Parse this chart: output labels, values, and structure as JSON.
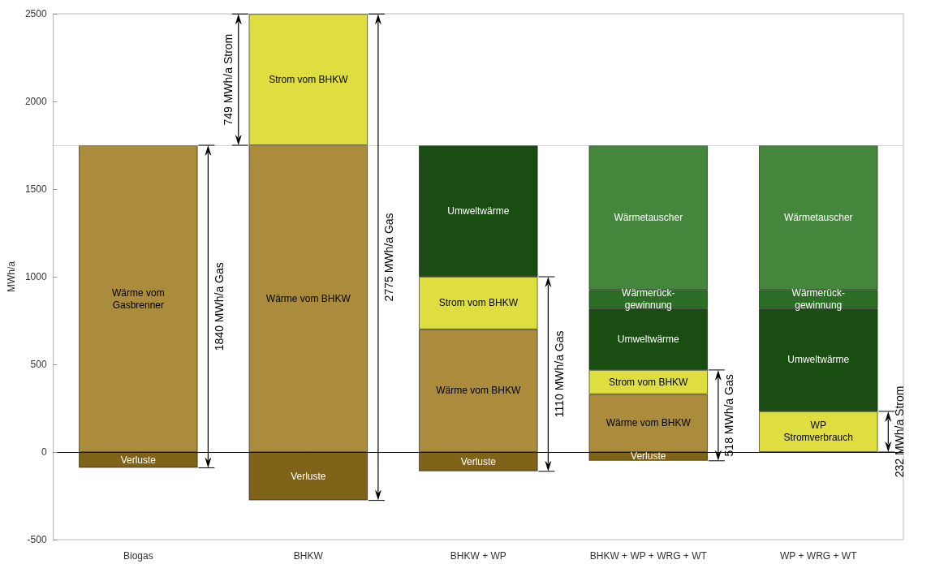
{
  "chart_data": {
    "type": "bar",
    "stacked": true,
    "ylabel": "MWh/a",
    "categories": [
      "Biogas",
      "BHKW",
      "BHKW + WP",
      "BHKW + WP + WRG + WT",
      "WP + WRG + WT"
    ],
    "series": [
      {
        "name": "Verluste",
        "color": "#7f6318",
        "values": [
          -90,
          -276,
          -110,
          -50,
          null
        ]
      },
      {
        "name": "Wärme vom\nGasbrenner",
        "color": "#aa8c3c",
        "values": [
          1750,
          null,
          null,
          null,
          null
        ]
      },
      {
        "name": "Wärme vom BHKW",
        "color": "#aa8c3c",
        "values": [
          null,
          1750,
          700,
          330,
          null
        ]
      },
      {
        "name": "WP\nStromverbrauch",
        "color": "#dede40",
        "values": [
          null,
          null,
          null,
          null,
          232
        ]
      },
      {
        "name": "Strom vom BHKW",
        "color": "#dede40",
        "values": [
          null,
          749,
          300,
          138,
          null
        ]
      },
      {
        "name": "Umweltwärme",
        "color": "#1a4d12",
        "values": [
          null,
          null,
          750,
          352,
          588
        ]
      },
      {
        "name": "Wärmerück-\ngewinnung",
        "color": "#2d6e26",
        "values": [
          null,
          null,
          null,
          105,
          105
        ]
      },
      {
        "name": "Wärmetauscher",
        "color": "#44863c",
        "values": [
          null,
          null,
          null,
          825,
          825
        ]
      }
    ],
    "ylim": [
      -500,
      2500
    ],
    "yticks": [
      -500,
      0,
      500,
      1000,
      1500,
      2000,
      2500
    ],
    "ref_lines": [
      {
        "axis": "y",
        "value": 1750,
        "label": null,
        "color": "#aaaaaa",
        "line_style": "dotted"
      }
    ],
    "annotations": [
      "749 MWh/a Strom",
      "1840 MWh/a Gas",
      "2775 MWh/a Gas",
      "1110 MWh/a Gas",
      "518 MWh/a Gas",
      "232 MWh/a Strom"
    ]
  }
}
